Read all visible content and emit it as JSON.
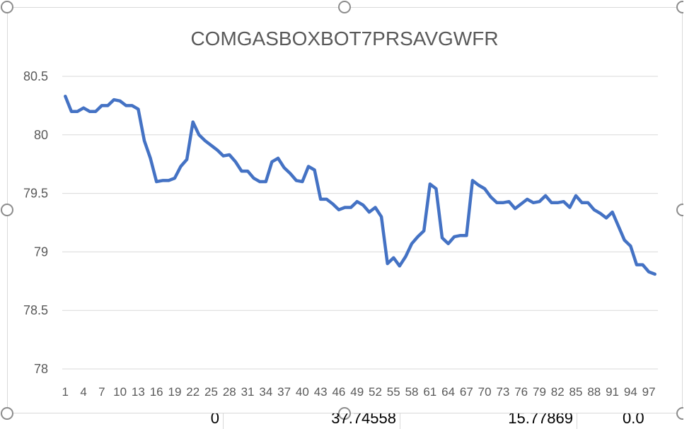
{
  "colors": {
    "series": "#4472c4"
  },
  "chart_data": {
    "type": "line",
    "title": "COMGASBOXBOT7PRSAVGWFR",
    "xlabel": "",
    "ylabel": "",
    "ylim": [
      78,
      80.5
    ],
    "yticks": [
      "80.5",
      "80",
      "79.5",
      "79",
      "78.5",
      "78"
    ],
    "grid": true,
    "x": [
      1,
      2,
      3,
      4,
      5,
      6,
      7,
      8,
      9,
      10,
      11,
      12,
      13,
      14,
      15,
      16,
      17,
      18,
      19,
      20,
      21,
      22,
      23,
      24,
      25,
      26,
      27,
      28,
      29,
      30,
      31,
      32,
      33,
      34,
      35,
      36,
      37,
      38,
      39,
      40,
      41,
      42,
      43,
      44,
      45,
      46,
      47,
      48,
      49,
      50,
      51,
      52,
      53,
      54,
      55,
      56,
      57,
      58,
      59,
      60,
      61,
      62,
      63,
      64,
      65,
      66,
      67,
      68,
      69,
      70,
      71,
      72,
      73,
      74,
      75,
      76,
      77,
      78,
      79,
      80,
      81,
      82,
      83,
      84,
      85,
      86,
      87,
      88,
      89,
      90,
      91,
      92,
      93,
      94,
      95,
      96,
      97,
      98
    ],
    "xtick_labels": [
      "1",
      "4",
      "7",
      "10",
      "13",
      "16",
      "19",
      "22",
      "25",
      "28",
      "31",
      "34",
      "37",
      "40",
      "43",
      "46",
      "49",
      "52",
      "55",
      "58",
      "61",
      "64",
      "67",
      "70",
      "73",
      "76",
      "79",
      "82",
      "85",
      "88",
      "91",
      "94",
      "97"
    ],
    "series": [
      {
        "values": [
          80.33,
          80.2,
          80.2,
          80.23,
          80.2,
          80.2,
          80.25,
          80.25,
          80.3,
          80.29,
          80.25,
          80.25,
          80.22,
          79.95,
          79.8,
          79.6,
          79.61,
          79.61,
          79.63,
          79.73,
          79.79,
          80.11,
          80.0,
          79.95,
          79.91,
          79.87,
          79.82,
          79.83,
          79.77,
          79.69,
          79.69,
          79.63,
          79.6,
          79.6,
          79.77,
          79.8,
          79.72,
          79.67,
          79.61,
          79.6,
          79.73,
          79.7,
          79.45,
          79.45,
          79.41,
          79.36,
          79.38,
          79.38,
          79.43,
          79.4,
          79.34,
          79.38,
          79.3,
          78.9,
          78.95,
          78.88,
          78.96,
          79.07,
          79.13,
          79.18,
          79.58,
          79.54,
          79.12,
          79.07,
          79.13,
          79.14,
          79.14,
          79.61,
          79.57,
          79.54,
          79.47,
          79.42,
          79.42,
          79.43,
          79.37,
          79.41,
          79.45,
          79.42,
          79.43,
          79.48,
          79.42,
          79.42,
          79.43,
          79.38,
          79.48,
          79.42,
          79.42,
          79.36,
          79.33,
          79.29,
          79.34,
          79.22,
          79.1,
          79.05,
          78.89,
          78.89,
          78.83,
          78.81
        ]
      }
    ]
  },
  "sheet_cells": [
    "0",
    "37.74558",
    "15.77869",
    "0.0"
  ]
}
